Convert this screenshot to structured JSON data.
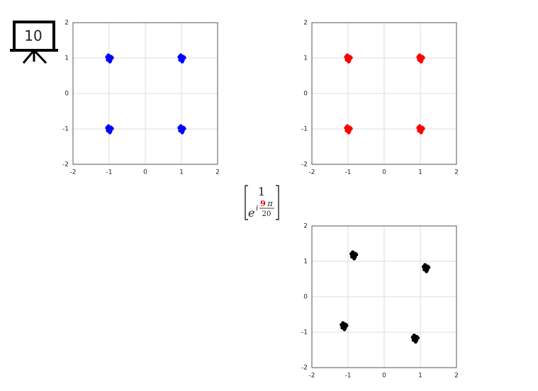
{
  "slide_number": "10",
  "formula": {
    "top": "1",
    "base": "e",
    "exponent_i": "i",
    "numerator": "9",
    "pi": "π",
    "denominator": "20"
  },
  "chart_data": [
    {
      "type": "scatter",
      "color": "#0000ff",
      "xlim": [
        -2,
        2
      ],
      "ylim": [
        -2,
        2
      ],
      "xticks": [
        -2,
        -1,
        0,
        1,
        2
      ],
      "yticks": [
        -2,
        -1,
        0,
        1,
        2
      ],
      "grid": true,
      "x": [
        -1,
        -0.95,
        -1.06,
        -0.96,
        -1.04,
        -0.92,
        -1.02,
        -0.98,
        1,
        1.05,
        0.94,
        1.04,
        0.96,
        1.08,
        0.98,
        1.02,
        -1,
        -0.95,
        -1.06,
        -0.96,
        -1.04,
        -0.92,
        -1.02,
        -0.98,
        1,
        1.05,
        0.94,
        1.04,
        0.96,
        1.08,
        0.98,
        1.02
      ],
      "values": [
        1,
        1.04,
        1.03,
        0.94,
        0.95,
        1.01,
        1.08,
        0.9,
        1,
        1.04,
        1.03,
        0.94,
        0.95,
        1.01,
        1.08,
        0.9,
        -1,
        -0.96,
        -0.97,
        -1.06,
        -1.05,
        -0.99,
        -0.92,
        -1.1,
        -1,
        -0.96,
        -0.97,
        -1.06,
        -1.05,
        -0.99,
        -0.92,
        -1.1
      ]
    },
    {
      "type": "scatter",
      "color": "#ff0000",
      "xlim": [
        -2,
        2
      ],
      "ylim": [
        -2,
        2
      ],
      "xticks": [
        -2,
        -1,
        0,
        1,
        2
      ],
      "yticks": [
        -2,
        -1,
        0,
        1,
        2
      ],
      "grid": true,
      "x": [
        -1,
        -0.95,
        -1.06,
        -0.96,
        -1.04,
        -0.92,
        -1.02,
        -0.98,
        1,
        1.05,
        0.94,
        1.04,
        0.96,
        1.08,
        0.98,
        1.02,
        -1,
        -0.95,
        -1.06,
        -0.96,
        -1.04,
        -0.92,
        -1.02,
        -0.98,
        1,
        1.05,
        0.94,
        1.04,
        0.96,
        1.08,
        0.98,
        1.02
      ],
      "values": [
        1,
        1.04,
        1.03,
        0.94,
        0.95,
        1.01,
        1.08,
        0.9,
        1,
        1.04,
        1.03,
        0.94,
        0.95,
        1.01,
        1.08,
        0.9,
        -1,
        -0.96,
        -0.97,
        -1.06,
        -1.05,
        -0.99,
        -0.92,
        -1.1,
        -1,
        -0.96,
        -0.97,
        -1.06,
        -1.05,
        -0.99,
        -0.92,
        -1.1
      ]
    },
    {
      "type": "scatter",
      "color": "#000000",
      "xlim": [
        -2,
        2
      ],
      "ylim": [
        -2,
        2
      ],
      "xticks": [
        -2,
        -1,
        0,
        1,
        2
      ],
      "yticks": [
        -2,
        -1,
        0,
        1,
        2
      ],
      "grid": true,
      "x": [
        -0.85,
        -0.8,
        -0.91,
        -0.81,
        -0.89,
        -0.77,
        -0.87,
        -0.83,
        1.15,
        1.2,
        1.09,
        1.19,
        1.11,
        1.23,
        1.13,
        1.17,
        -1.12,
        -1.07,
        -1.18,
        -1.08,
        -1.16,
        -1.04,
        -1.14,
        -1.1,
        0.85,
        0.9,
        0.79,
        0.89,
        0.81,
        0.93,
        0.83,
        0.87
      ],
      "values": [
        1.18,
        1.22,
        1.21,
        1.12,
        1.13,
        1.19,
        1.26,
        1.08,
        0.82,
        0.86,
        0.85,
        0.76,
        0.77,
        0.83,
        0.9,
        0.72,
        -0.82,
        -0.78,
        -0.79,
        -0.88,
        -0.87,
        -0.81,
        -0.74,
        -0.92,
        -1.17,
        -1.13,
        -1.14,
        -1.23,
        -1.22,
        -1.16,
        -1.09,
        -1.27
      ]
    }
  ]
}
